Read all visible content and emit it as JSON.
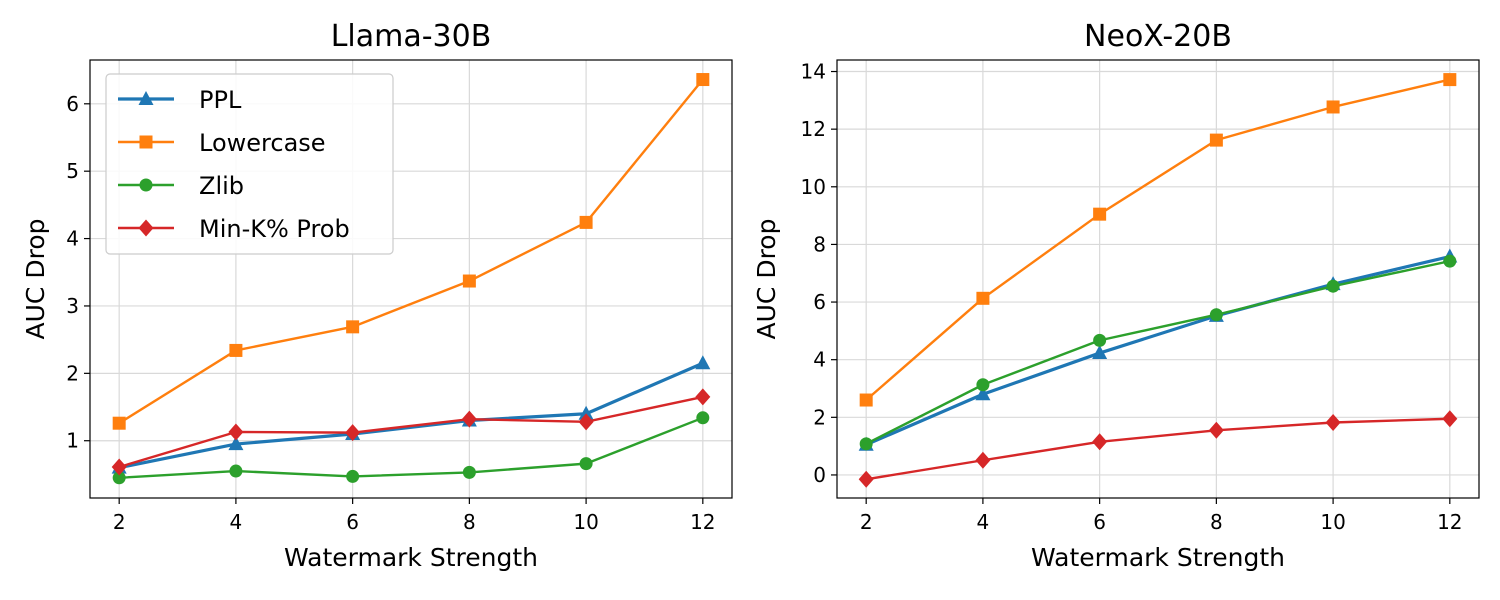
{
  "chart_data": [
    {
      "type": "line",
      "title": "Llama-30B",
      "xlabel": "Watermark Strength",
      "ylabel": "AUC Drop",
      "x": [
        2,
        4,
        6,
        8,
        10,
        12
      ],
      "xticks": [
        2,
        4,
        6,
        8,
        10,
        12
      ],
      "yticks": [
        1,
        2,
        3,
        4,
        5,
        6
      ],
      "xlim": [
        1.5,
        12.5
      ],
      "ylim": [
        0.15,
        6.65
      ],
      "grid": true,
      "legend": "top-left",
      "series": [
        {
          "name": "PPL",
          "color": "#1f77b4",
          "marker": "triangle",
          "values": [
            0.6,
            0.95,
            1.1,
            1.3,
            1.4,
            2.15
          ]
        },
        {
          "name": "Lowercase",
          "color": "#ff7f0e",
          "marker": "square",
          "values": [
            1.26,
            2.34,
            2.69,
            3.37,
            4.24,
            6.36
          ]
        },
        {
          "name": "Zlib",
          "color": "#2ca02c",
          "marker": "circle",
          "values": [
            0.45,
            0.55,
            0.47,
            0.53,
            0.66,
            1.34
          ]
        },
        {
          "name": "Min-K% Prob",
          "color": "#d62728",
          "marker": "diamond",
          "values": [
            0.61,
            1.13,
            1.12,
            1.32,
            1.28,
            1.65
          ]
        }
      ]
    },
    {
      "type": "line",
      "title": "NeoX-20B",
      "xlabel": "Watermark Strength",
      "ylabel": "AUC Drop",
      "x": [
        2,
        4,
        6,
        8,
        10,
        12
      ],
      "xticks": [
        2,
        4,
        6,
        8,
        10,
        12
      ],
      "yticks": [
        0,
        2,
        4,
        6,
        8,
        10,
        12,
        14
      ],
      "xlim": [
        1.5,
        12.5
      ],
      "ylim": [
        -0.8,
        14.4
      ],
      "grid": true,
      "series": [
        {
          "name": "PPL",
          "color": "#1f77b4",
          "marker": "triangle",
          "values": [
            1.05,
            2.8,
            4.23,
            5.52,
            6.62,
            7.58
          ]
        },
        {
          "name": "Lowercase",
          "color": "#ff7f0e",
          "marker": "square",
          "values": [
            2.6,
            6.13,
            9.05,
            11.62,
            12.77,
            13.72
          ]
        },
        {
          "name": "Zlib",
          "color": "#2ca02c",
          "marker": "circle",
          "values": [
            1.08,
            3.13,
            4.67,
            5.56,
            6.55,
            7.42
          ]
        },
        {
          "name": "Min-K% Prob",
          "color": "#d62728",
          "marker": "diamond",
          "values": [
            -0.15,
            0.51,
            1.15,
            1.55,
            1.82,
            1.95
          ]
        }
      ]
    }
  ]
}
